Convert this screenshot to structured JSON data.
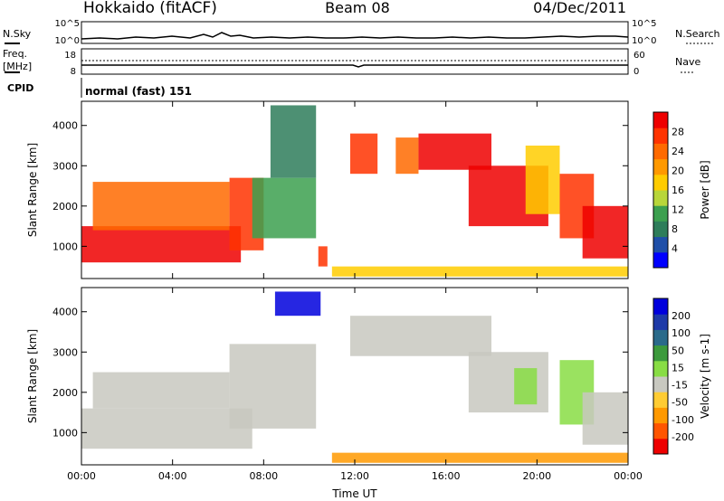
{
  "header": {
    "station": "Hokkaido (fitACF)",
    "beam": "Beam 08",
    "date": "04/Dec/2011"
  },
  "status_panels": {
    "nsky": {
      "label": "N.Sky",
      "tick_top": "10^5",
      "tick_bottom": "10^0",
      "right_label": "N.Search",
      "right_tick_top": "10^5",
      "right_tick_bottom": "10^0"
    },
    "freq": {
      "label_line1": "Freq.",
      "label_line2": "[MHz]",
      "tick_top": "18",
      "tick_bottom": "8",
      "right_label": "Nave",
      "right_tick_top": "60",
      "right_tick_bottom": "0"
    },
    "cpid": {
      "label": "CPID",
      "text": "normal (fast) 151"
    }
  },
  "chart_data": [
    {
      "type": "heatmap",
      "name": "power",
      "ylabel": "Slant Range [km]",
      "ylim": [
        200,
        4600
      ],
      "yticks": [
        "1000",
        "2000",
        "3000",
        "4000"
      ],
      "xlim_hours": [
        0,
        24
      ],
      "colorbar": {
        "label": "Power [dB]",
        "ticks": [
          "4",
          "8",
          "12",
          "16",
          "20",
          "24",
          "28"
        ],
        "colors": [
          "#0000ff",
          "#1f4fa8",
          "#2e7d5a",
          "#3ca04f",
          "#b8d63a",
          "#ffcc00",
          "#ff9900",
          "#ff6a00",
          "#ff3300",
          "#ee0000"
        ]
      },
      "regions": [
        {
          "x0": 0.0,
          "x1": 7.0,
          "y0": 600,
          "y1": 1500,
          "level": 9
        },
        {
          "x0": 0.5,
          "x1": 6.5,
          "y0": 1400,
          "y1": 2600,
          "level": 7
        },
        {
          "x0": 6.5,
          "x1": 8.0,
          "y0": 900,
          "y1": 2700,
          "level": 8
        },
        {
          "x0": 7.5,
          "x1": 10.3,
          "y0": 1200,
          "y1": 2700,
          "level": 3
        },
        {
          "x0": 8.3,
          "x1": 10.3,
          "y0": 2700,
          "y1": 4500,
          "level": 2
        },
        {
          "x0": 10.4,
          "x1": 10.8,
          "y0": 500,
          "y1": 1000,
          "level": 8
        },
        {
          "x0": 11.8,
          "x1": 13.0,
          "y0": 2800,
          "y1": 3800,
          "level": 8
        },
        {
          "x0": 13.8,
          "x1": 14.8,
          "y0": 2800,
          "y1": 3700,
          "level": 7
        },
        {
          "x0": 14.8,
          "x1": 18.0,
          "y0": 2900,
          "y1": 3800,
          "level": 9
        },
        {
          "x0": 17.0,
          "x1": 20.5,
          "y0": 1500,
          "y1": 3000,
          "level": 9
        },
        {
          "x0": 19.5,
          "x1": 21.0,
          "y0": 1800,
          "y1": 3500,
          "level": 5
        },
        {
          "x0": 21.0,
          "x1": 22.5,
          "y0": 1200,
          "y1": 2800,
          "level": 8
        },
        {
          "x0": 22.0,
          "x1": 24.0,
          "y0": 700,
          "y1": 2000,
          "level": 9
        },
        {
          "x0": 11.0,
          "x1": 24.0,
          "y0": 250,
          "y1": 500,
          "level": 5
        }
      ]
    },
    {
      "type": "heatmap",
      "name": "velocity",
      "ylabel": "Slant Range [km]",
      "ylim": [
        200,
        4600
      ],
      "yticks": [
        "1000",
        "2000",
        "3000",
        "4000"
      ],
      "xlim_hours": [
        0,
        24
      ],
      "xlabel": "Time UT",
      "xticks": [
        "00:00",
        "04:00",
        "08:00",
        "12:00",
        "16:00",
        "20:00",
        "00:00"
      ],
      "colorbar": {
        "label": "Velocity [m s-1]",
        "ticks": [
          "-200",
          "-100",
          "-50",
          "-15",
          "15",
          "50",
          "100",
          "200"
        ],
        "colors": [
          "#ee0000",
          "#ff5500",
          "#ff9900",
          "#ffcc33",
          "#c8c8c0",
          "#88dd44",
          "#3c9a3c",
          "#2a6a8a",
          "#1e3aa8",
          "#0000dd"
        ]
      },
      "regions": [
        {
          "x0": 0.0,
          "x1": 7.5,
          "y0": 600,
          "y1": 1600,
          "level": 4
        },
        {
          "x0": 0.5,
          "x1": 6.5,
          "y0": 1600,
          "y1": 2500,
          "level": 4
        },
        {
          "x0": 6.5,
          "x1": 10.3,
          "y0": 1100,
          "y1": 3200,
          "level": 4
        },
        {
          "x0": 8.5,
          "x1": 10.5,
          "y0": 3900,
          "y1": 4500,
          "level": 9
        },
        {
          "x0": 11.8,
          "x1": 18.0,
          "y0": 2900,
          "y1": 3900,
          "level": 4
        },
        {
          "x0": 17.0,
          "x1": 20.5,
          "y0": 1500,
          "y1": 3000,
          "level": 4
        },
        {
          "x0": 19.0,
          "x1": 20.0,
          "y0": 1700,
          "y1": 2600,
          "level": 5
        },
        {
          "x0": 21.0,
          "x1": 22.5,
          "y0": 1200,
          "y1": 2800,
          "level": 5
        },
        {
          "x0": 22.0,
          "x1": 24.0,
          "y0": 700,
          "y1": 2000,
          "level": 4
        },
        {
          "x0": 11.0,
          "x1": 24.0,
          "y0": 250,
          "y1": 500,
          "level": 2
        }
      ]
    }
  ]
}
